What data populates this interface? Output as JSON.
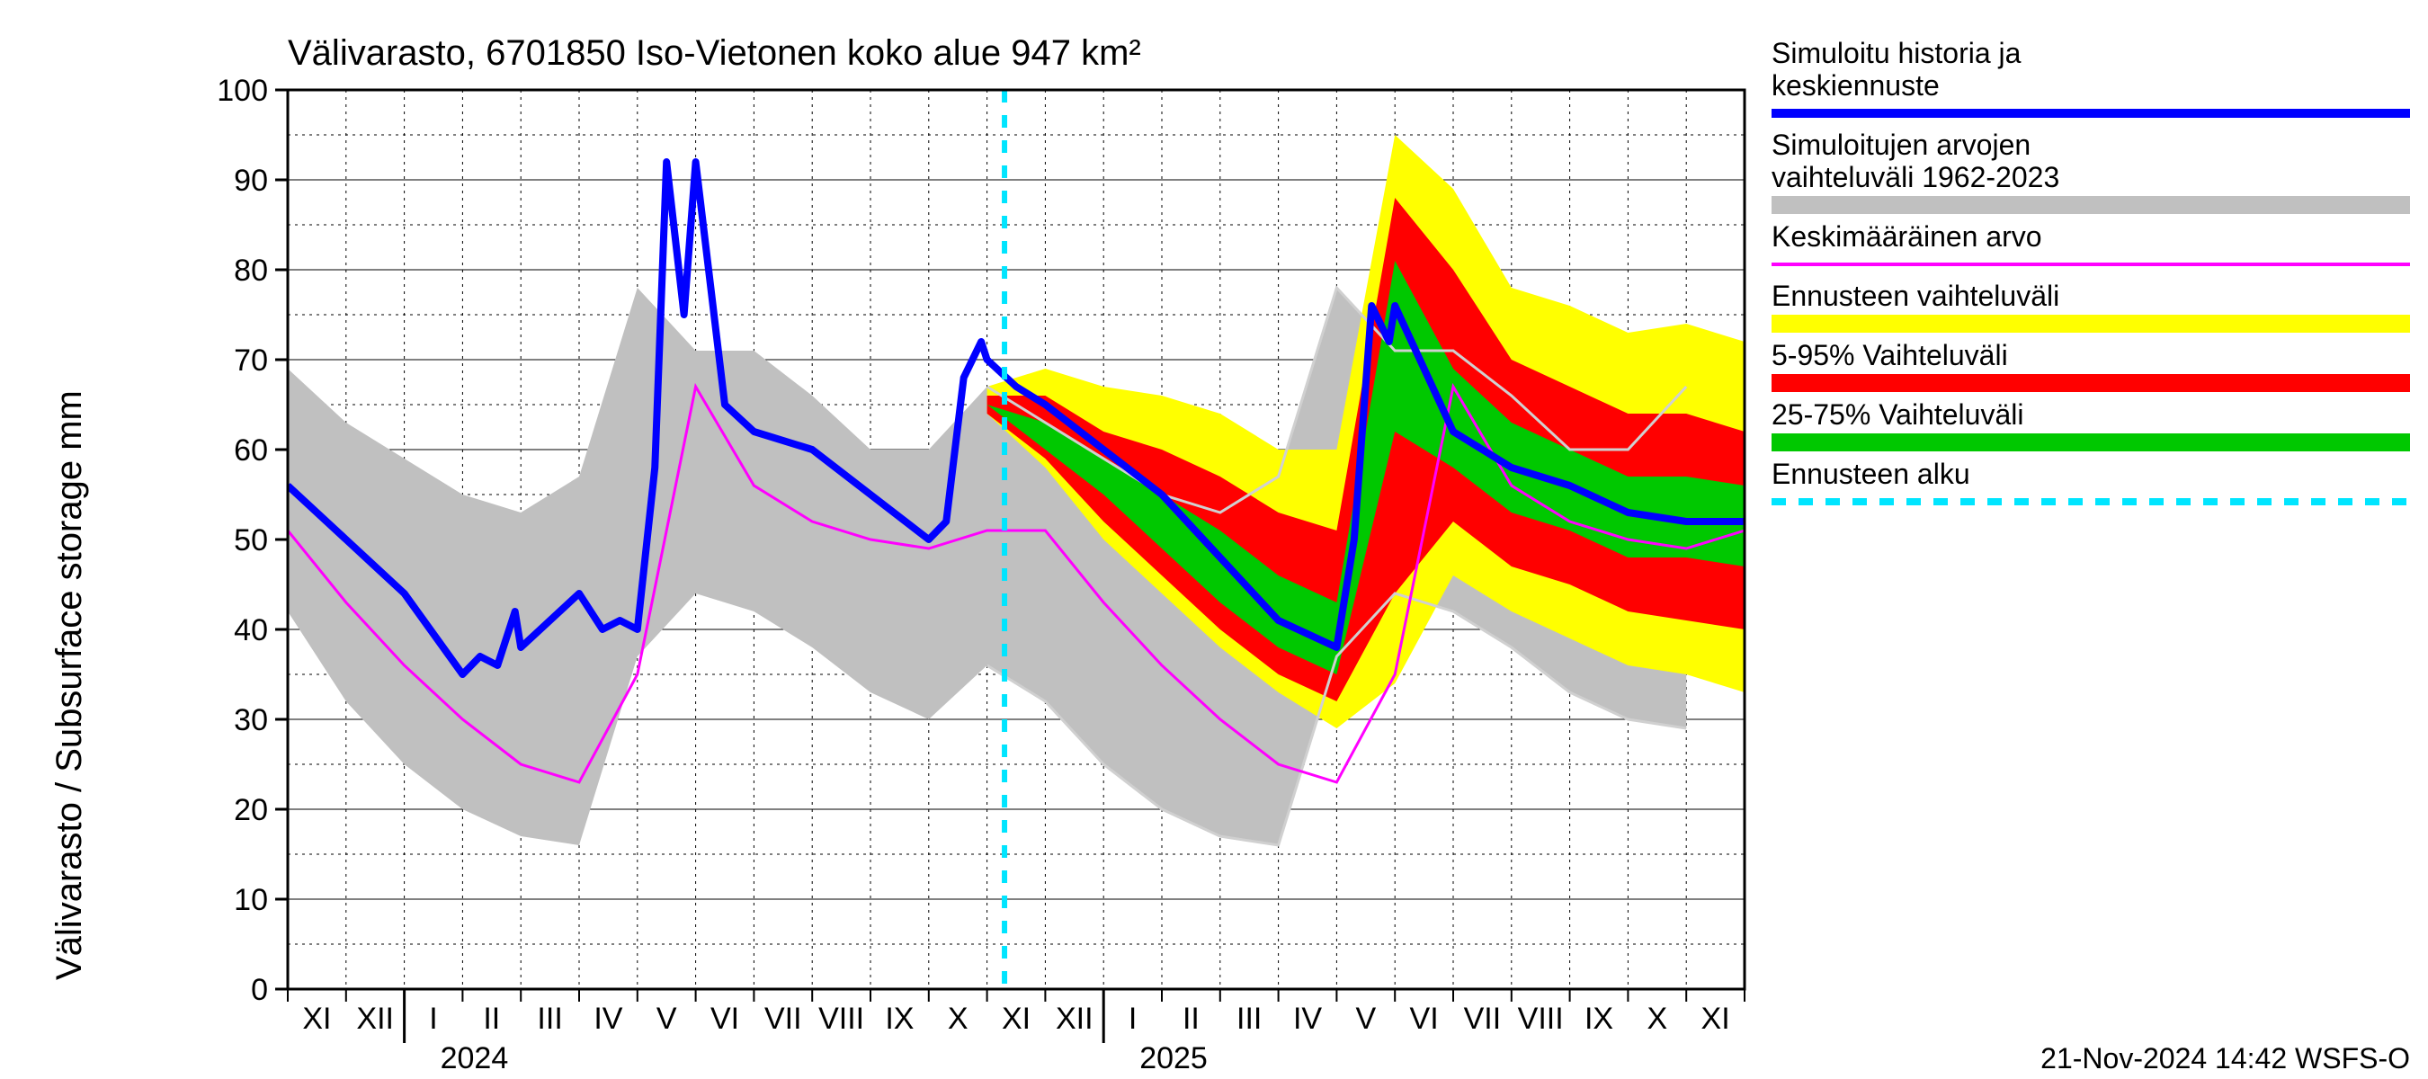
{
  "chart": {
    "type": "line",
    "title": "Välivarasto, 6701850 Iso-Vietonen koko alue 947 km²",
    "ylabel": "Välivarasto / Subsurface storage  mm",
    "footer": "21-Nov-2024 14:42 WSFS-O",
    "background_color": "#ffffff",
    "grid_color_major": "#000000",
    "grid_color_minor": "#000000",
    "grid_dash_minor": "3 5",
    "title_fontsize": 40,
    "label_fontsize": 40,
    "tick_fontsize": 34,
    "legend_fontsize": 32,
    "xlim": [
      0,
      25
    ],
    "ylim": [
      0,
      100
    ],
    "ytick_step": 10,
    "yticks": [
      0,
      10,
      20,
      30,
      40,
      50,
      60,
      70,
      80,
      90,
      100
    ],
    "xticks_months": [
      "XI",
      "XII",
      "I",
      "II",
      "III",
      "IV",
      "V",
      "VI",
      "VII",
      "VIII",
      "IX",
      "X",
      "XI",
      "XII",
      "I",
      "II",
      "III",
      "IV",
      "V",
      "VI",
      "VII",
      "VIII",
      "IX",
      "X",
      "XI"
    ],
    "xticks_years": [
      {
        "label": "2024",
        "at_month_index": 2
      },
      {
        "label": "2025",
        "at_month_index": 14
      }
    ],
    "forecast_start_index": 12.3,
    "colors": {
      "blue_line": "#0000ff",
      "magenta_line": "#ff00ff",
      "gray_band": "#c0c0c0",
      "lightgray_line": "#d0d0d0",
      "yellow_band": "#ffff00",
      "red_band": "#ff0000",
      "green_band": "#00c800",
      "cyan_line": "#00e5ff"
    },
    "line_widths": {
      "blue": 8,
      "magenta": 3,
      "lightgray": 3,
      "cyan": 6
    },
    "legend": [
      {
        "label1": "Simuloitu historia ja",
        "label2": "keskiennuste",
        "type": "line",
        "color": "#0000ff",
        "width": 10
      },
      {
        "label1": "Simuloitujen arvojen",
        "label2": "vaihteluväli 1962-2023",
        "type": "band",
        "color": "#c0c0c0"
      },
      {
        "label1": "Keskimääräinen arvo",
        "label2": "",
        "type": "line",
        "color": "#ff00ff",
        "width": 4
      },
      {
        "label1": "Ennusteen vaihteluväli",
        "label2": "",
        "type": "band",
        "color": "#ffff00"
      },
      {
        "label1": "5-95% Vaihteluväli",
        "label2": "",
        "type": "band",
        "color": "#ff0000"
      },
      {
        "label1": "25-75% Vaihteluväli",
        "label2": "",
        "type": "band",
        "color": "#00c800"
      },
      {
        "label1": "Ennusteen alku",
        "label2": "",
        "type": "dash",
        "color": "#00e5ff",
        "width": 8
      }
    ],
    "series": {
      "gray_upper": [
        69,
        63,
        59,
        55,
        53,
        57,
        78,
        71,
        71,
        66,
        60,
        60,
        67,
        63,
        59,
        55,
        53,
        57,
        78,
        71,
        71,
        66,
        60,
        60,
        67
      ],
      "gray_lower": [
        42,
        32,
        25,
        20,
        17,
        16,
        37,
        44,
        42,
        38,
        33,
        30,
        36,
        32,
        25,
        20,
        17,
        16,
        37,
        44,
        42,
        38,
        33,
        30,
        29
      ],
      "blue": [
        56,
        50,
        44,
        35,
        38,
        44,
        40,
        92,
        62,
        60,
        55,
        50,
        70,
        65,
        60,
        55,
        48,
        41,
        38,
        76,
        62,
        58,
        56,
        53,
        52,
        52
      ],
      "magenta": [
        51,
        43,
        36,
        30,
        25,
        23,
        35,
        67,
        56,
        52,
        50,
        49,
        51,
        51,
        43,
        36,
        30,
        25,
        23,
        35,
        67,
        56,
        52,
        50,
        49,
        51
      ],
      "yellow_upper": [
        67,
        69,
        67,
        66,
        64,
        60,
        60,
        95,
        89,
        78,
        76,
        73,
        74,
        72
      ],
      "yellow_lower": [
        64,
        58,
        50,
        44,
        38,
        33,
        29,
        34,
        46,
        42,
        39,
        36,
        35,
        33
      ],
      "red_upper": [
        66,
        66,
        62,
        60,
        57,
        53,
        51,
        88,
        80,
        70,
        67,
        64,
        64,
        62
      ],
      "red_lower": [
        64,
        59,
        52,
        46,
        40,
        35,
        32,
        44,
        52,
        47,
        45,
        42,
        41,
        40
      ],
      "green_upper": [
        65,
        63,
        59,
        55,
        51,
        46,
        43,
        81,
        69,
        63,
        60,
        57,
        57,
        56
      ],
      "green_lower": [
        65,
        60,
        55,
        49,
        43,
        38,
        35,
        62,
        58,
        53,
        51,
        48,
        48,
        47
      ],
      "lightgray_upper_fc": [
        67,
        63,
        59,
        55,
        53,
        57,
        78,
        71,
        71,
        66,
        60,
        60,
        67
      ],
      "lightgray_lower_fc": [
        36,
        32,
        25,
        20,
        17,
        16,
        37,
        44,
        42,
        38,
        33,
        30,
        29
      ]
    }
  }
}
